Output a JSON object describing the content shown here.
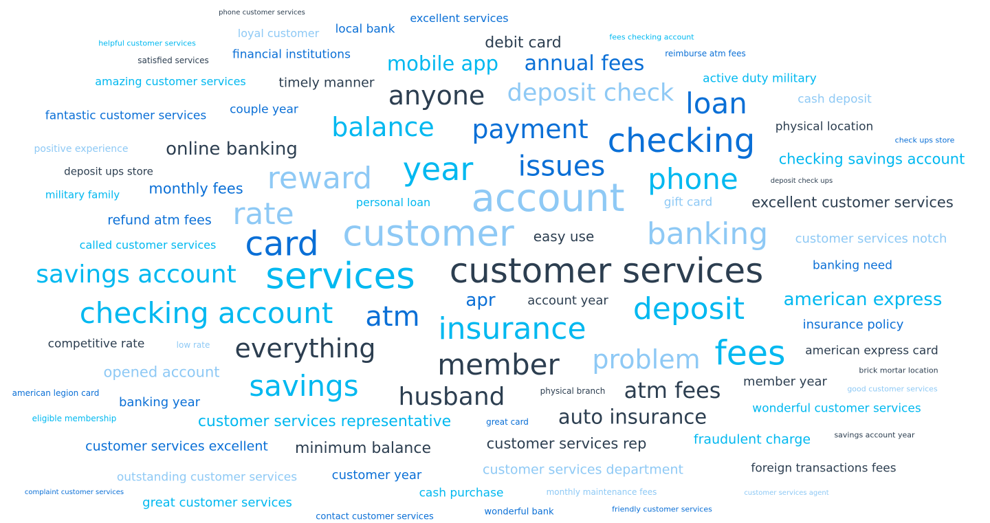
{
  "colors": {
    "navy": "#2c3e50",
    "blue": "#0a6fd6",
    "cyan": "#00b8f0",
    "light": "#8ec9f5"
  },
  "words": [
    {
      "text": "phone customer services",
      "size": 10,
      "color": "navy"
    },
    {
      "text": "loyal customer",
      "size": 16,
      "color": "light"
    },
    {
      "text": "local bank",
      "size": 17,
      "color": "blue"
    },
    {
      "text": "excellent services",
      "size": 16,
      "color": "blue"
    },
    {
      "text": "helpful customer services",
      "size": 11,
      "color": "cyan"
    },
    {
      "text": "satisfied services",
      "size": 12,
      "color": "navy"
    },
    {
      "text": "financial institutions",
      "size": 17,
      "color": "blue"
    },
    {
      "text": "debit card",
      "size": 22,
      "color": "navy"
    },
    {
      "text": "fees checking account",
      "size": 11,
      "color": "cyan"
    },
    {
      "text": "reimburse atm fees",
      "size": 12,
      "color": "blue"
    },
    {
      "text": "mobile app",
      "size": 29,
      "color": "cyan"
    },
    {
      "text": "annual fees",
      "size": 30,
      "color": "blue"
    },
    {
      "text": "amazing customer services",
      "size": 16,
      "color": "cyan"
    },
    {
      "text": "timely manner",
      "size": 19,
      "color": "navy"
    },
    {
      "text": "active duty military",
      "size": 17,
      "color": "cyan"
    },
    {
      "text": "anyone",
      "size": 38,
      "color": "navy"
    },
    {
      "text": "deposit check",
      "size": 35,
      "color": "light"
    },
    {
      "text": "loan",
      "size": 42,
      "color": "blue"
    },
    {
      "text": "cash deposit",
      "size": 17,
      "color": "light"
    },
    {
      "text": "fantastic customer services",
      "size": 17,
      "color": "blue"
    },
    {
      "text": "couple year",
      "size": 17,
      "color": "blue"
    },
    {
      "text": "balance",
      "size": 38,
      "color": "cyan"
    },
    {
      "text": "payment",
      "size": 38,
      "color": "blue"
    },
    {
      "text": "checking",
      "size": 48,
      "color": "blue"
    },
    {
      "text": "physical location",
      "size": 17,
      "color": "navy"
    },
    {
      "text": "positive experience",
      "size": 14,
      "color": "light"
    },
    {
      "text": "online banking",
      "size": 26,
      "color": "navy"
    },
    {
      "text": "check ups store",
      "size": 11,
      "color": "blue"
    },
    {
      "text": "deposit ups store",
      "size": 15,
      "color": "navy"
    },
    {
      "text": "year",
      "size": 46,
      "color": "cyan"
    },
    {
      "text": "issues",
      "size": 41,
      "color": "blue"
    },
    {
      "text": "checking savings account",
      "size": 21,
      "color": "cyan"
    },
    {
      "text": "reward",
      "size": 44,
      "color": "light"
    },
    {
      "text": "phone",
      "size": 42,
      "color": "cyan"
    },
    {
      "text": "deposit check ups",
      "size": 10,
      "color": "navy"
    },
    {
      "text": "military family",
      "size": 15,
      "color": "cyan"
    },
    {
      "text": "monthly fees",
      "size": 21,
      "color": "blue"
    },
    {
      "text": "account",
      "size": 56,
      "color": "light"
    },
    {
      "text": "personal loan",
      "size": 16,
      "color": "cyan"
    },
    {
      "text": "gift card",
      "size": 17,
      "color": "light"
    },
    {
      "text": "excellent customer services",
      "size": 21,
      "color": "navy"
    },
    {
      "text": "rate",
      "size": 44,
      "color": "light"
    },
    {
      "text": "refund atm fees",
      "size": 19,
      "color": "blue"
    },
    {
      "text": "customer",
      "size": 53,
      "color": "light"
    },
    {
      "text": "banking",
      "size": 44,
      "color": "light"
    },
    {
      "text": "card",
      "size": 49,
      "color": "blue"
    },
    {
      "text": "easy use",
      "size": 20,
      "color": "navy"
    },
    {
      "text": "customer services notch",
      "size": 18,
      "color": "light"
    },
    {
      "text": "called customer services",
      "size": 16,
      "color": "cyan"
    },
    {
      "text": "savings account",
      "size": 36,
      "color": "cyan"
    },
    {
      "text": "services",
      "size": 53,
      "color": "cyan"
    },
    {
      "text": "customer services",
      "size": 50,
      "color": "navy"
    },
    {
      "text": "banking need",
      "size": 17,
      "color": "blue"
    },
    {
      "text": "checking account",
      "size": 42,
      "color": "cyan"
    },
    {
      "text": "apr",
      "size": 26,
      "color": "blue"
    },
    {
      "text": "account year",
      "size": 18,
      "color": "navy"
    },
    {
      "text": "american express",
      "size": 26,
      "color": "cyan"
    },
    {
      "text": "atm",
      "size": 40,
      "color": "blue"
    },
    {
      "text": "deposit",
      "size": 44,
      "color": "cyan"
    },
    {
      "text": "insurance",
      "size": 44,
      "color": "cyan"
    },
    {
      "text": "insurance policy",
      "size": 18,
      "color": "blue"
    },
    {
      "text": "competitive rate",
      "size": 17,
      "color": "navy"
    },
    {
      "text": "low rate",
      "size": 12,
      "color": "light"
    },
    {
      "text": "everything",
      "size": 38,
      "color": "navy"
    },
    {
      "text": "fees",
      "size": 49,
      "color": "cyan"
    },
    {
      "text": "american express card",
      "size": 17,
      "color": "navy"
    },
    {
      "text": "problem",
      "size": 38,
      "color": "light"
    },
    {
      "text": "member",
      "size": 42,
      "color": "navy"
    },
    {
      "text": "opened account",
      "size": 21,
      "color": "light"
    },
    {
      "text": "brick mortar location",
      "size": 11,
      "color": "navy"
    },
    {
      "text": "savings",
      "size": 42,
      "color": "cyan"
    },
    {
      "text": "member year",
      "size": 18,
      "color": "navy"
    },
    {
      "text": "american legion card",
      "size": 12,
      "color": "blue"
    },
    {
      "text": "husband",
      "size": 36,
      "color": "navy"
    },
    {
      "text": "physical branch",
      "size": 12,
      "color": "navy"
    },
    {
      "text": "atm fees",
      "size": 32,
      "color": "navy"
    },
    {
      "text": "good customer services",
      "size": 11,
      "color": "light"
    },
    {
      "text": "banking year",
      "size": 18,
      "color": "blue"
    },
    {
      "text": "wonderful customer services",
      "size": 17,
      "color": "cyan"
    },
    {
      "text": "eligible membership",
      "size": 12,
      "color": "cyan"
    },
    {
      "text": "customer services representative",
      "size": 22,
      "color": "cyan"
    },
    {
      "text": "great card",
      "size": 12,
      "color": "blue"
    },
    {
      "text": "auto insurance",
      "size": 29,
      "color": "navy"
    },
    {
      "text": "fraudulent charge",
      "size": 19,
      "color": "cyan"
    },
    {
      "text": "savings account year",
      "size": 11,
      "color": "navy"
    },
    {
      "text": "customer services excellent",
      "size": 19,
      "color": "blue"
    },
    {
      "text": "minimum balance",
      "size": 22,
      "color": "navy"
    },
    {
      "text": "customer services rep",
      "size": 21,
      "color": "navy"
    },
    {
      "text": "foreign transactions fees",
      "size": 17,
      "color": "navy"
    },
    {
      "text": "outstanding customer services",
      "size": 17,
      "color": "light"
    },
    {
      "text": "customer year",
      "size": 18,
      "color": "blue"
    },
    {
      "text": "customer services department",
      "size": 19,
      "color": "light"
    },
    {
      "text": "complaint customer services",
      "size": 10,
      "color": "blue"
    },
    {
      "text": "cash purchase",
      "size": 17,
      "color": "cyan"
    },
    {
      "text": "monthly maintenance fees",
      "size": 12,
      "color": "light"
    },
    {
      "text": "customer services agent",
      "size": 10,
      "color": "light"
    },
    {
      "text": "great customer services",
      "size": 18,
      "color": "cyan"
    },
    {
      "text": "contact customer services",
      "size": 13,
      "color": "blue"
    },
    {
      "text": "wonderful bank",
      "size": 13,
      "color": "blue"
    },
    {
      "text": "friendly customer services",
      "size": 11,
      "color": "blue"
    }
  ]
}
